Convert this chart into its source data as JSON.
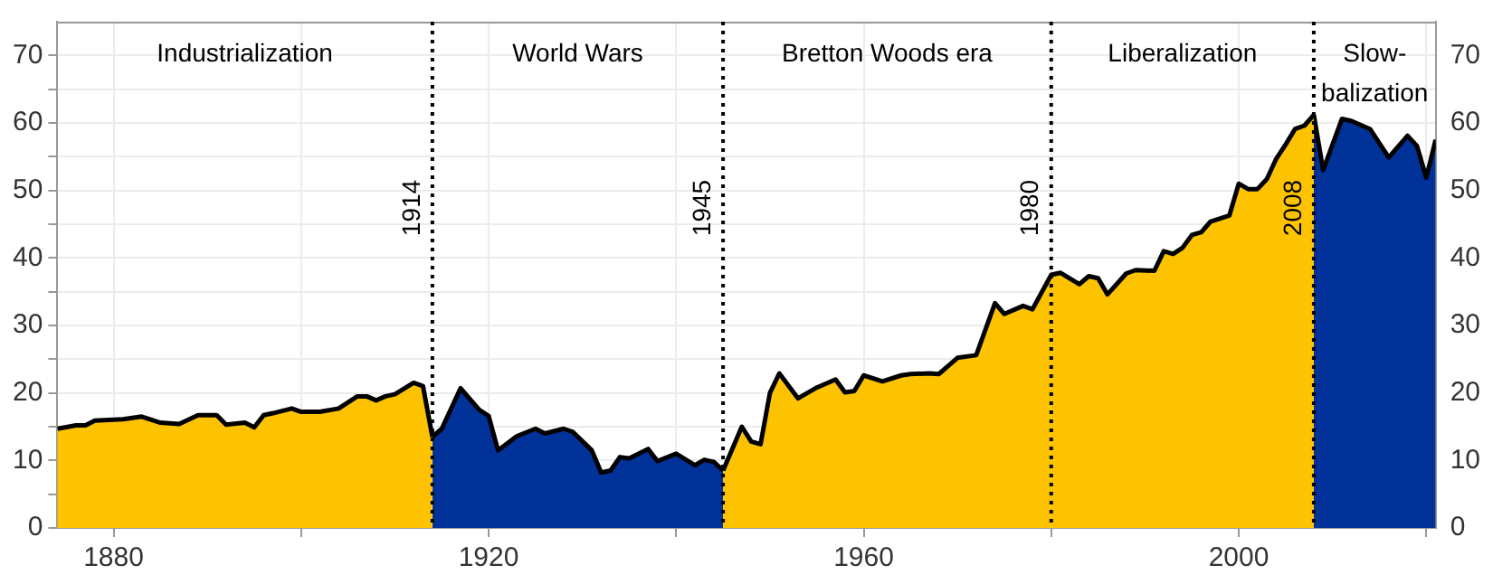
{
  "chart_data": {
    "type": "area",
    "xlim": [
      1874,
      2021
    ],
    "xticks": [
      1880,
      {
        "value": 1900,
        "label": null
      },
      1920,
      {
        "value": 1940,
        "label": null
      },
      1960,
      {
        "value": 1980,
        "label": null
      },
      2000,
      {
        "value": 2020,
        "label": null
      }
    ],
    "ylim": [
      0,
      75
    ],
    "yticks": [
      0,
      {
        "value": 5,
        "label": null
      },
      10,
      {
        "value": 15,
        "label": null
      },
      20,
      {
        "value": 25,
        "label": null
      },
      30,
      {
        "value": 35,
        "label": null
      },
      40,
      {
        "value": 45,
        "label": null
      },
      50,
      {
        "value": 55,
        "label": null
      },
      60,
      {
        "value": 65,
        "label": null
      },
      70
    ],
    "y2lim": [
      0,
      75
    ],
    "y2ticks": [
      0,
      10,
      20,
      30,
      40,
      50,
      60,
      70
    ],
    "grid": true,
    "series": [
      {
        "color": "#fdc300",
        "x": [
          1874,
          1876,
          1877,
          1878,
          1881,
          1883,
          1885,
          1887,
          1889,
          1891,
          1892,
          1894,
          1895,
          1896,
          1897,
          1899,
          1900,
          1902,
          1904,
          1906,
          1907,
          1908,
          1909,
          1910,
          1912,
          1913,
          1914
        ],
        "values": [
          14.7,
          15.2,
          15.2,
          15.9,
          16.1,
          16.5,
          15.6,
          15.4,
          16.7,
          16.7,
          15.3,
          15.6,
          14.9,
          16.7,
          17.0,
          17.7,
          17.2,
          17.2,
          17.7,
          19.5,
          19.5,
          18.9,
          19.5,
          19.8,
          21.5,
          21.0,
          13.5
        ]
      },
      {
        "color": "#003299",
        "x": [
          1914,
          1915,
          1917,
          1919,
          1920,
          1921,
          1923,
          1925,
          1926,
          1928,
          1929,
          1931,
          1932,
          1933,
          1934,
          1935,
          1937,
          1938,
          1940,
          1942,
          1943,
          1944,
          1945
        ],
        "values": [
          13.5,
          14.7,
          20.7,
          17.5,
          16.6,
          11.5,
          13.6,
          14.7,
          14.0,
          14.7,
          14.2,
          11.5,
          8.2,
          8.5,
          10.5,
          10.3,
          11.7,
          9.9,
          11.0,
          9.3,
          10.1,
          9.8,
          8.5
        ]
      },
      {
        "color": "#fdc300",
        "x": [
          1945,
          1947,
          1948,
          1949,
          1950,
          1951,
          1953,
          1955,
          1957,
          1958,
          1959,
          1960,
          1962,
          1964,
          1965,
          1967,
          1968,
          1969,
          1970,
          1972,
          1974,
          1975,
          1977,
          1978,
          1980,
          1981,
          1983,
          1984,
          1985,
          1986,
          1988,
          1989,
          1991,
          1992,
          1993,
          1994,
          1995,
          1996,
          1997,
          1999,
          2000,
          2001,
          2002,
          2003,
          2004,
          2005,
          2006,
          2007,
          2008
        ],
        "values": [
          8.5,
          15.0,
          12.8,
          12.4,
          20.0,
          22.9,
          19.2,
          20.8,
          22.0,
          20.1,
          20.3,
          22.6,
          21.7,
          22.6,
          22.8,
          22.9,
          22.8,
          24.0,
          25.2,
          25.6,
          33.3,
          31.7,
          32.9,
          32.4,
          37.5,
          37.8,
          36.1,
          37.3,
          37.0,
          34.6,
          37.7,
          38.2,
          38.1,
          41.0,
          40.6,
          41.5,
          43.4,
          43.8,
          45.4,
          46.3,
          51.0,
          50.2,
          50.2,
          51.7,
          54.7,
          56.8,
          59.1,
          59.6,
          61.2
        ]
      },
      {
        "color": "#003299",
        "x": [
          2008,
          2009,
          2010,
          2011,
          2012,
          2014,
          2016,
          2018,
          2019,
          2020,
          2021
        ],
        "values": [
          61.2,
          53.0,
          56.8,
          60.6,
          60.3,
          59.1,
          54.9,
          58.1,
          56.6,
          51.9,
          57.5
        ]
      }
    ],
    "ref_lines": [
      {
        "axis": "x",
        "value": 1914,
        "label": "1914",
        "color": "#000000",
        "line_style": "dotted"
      },
      {
        "axis": "x",
        "value": 1945,
        "label": "1945",
        "color": "#000000",
        "line_style": "dotted"
      },
      {
        "axis": "x",
        "value": 1980,
        "label": "1980",
        "color": "#000000",
        "line_style": "dotted"
      },
      {
        "axis": "x",
        "value": 2008,
        "label": "2008",
        "color": "#000000",
        "line_style": "dotted"
      }
    ],
    "annotations": [
      "Industrialization",
      "World Wars",
      "Bretton Woods era",
      "Liberalization",
      "Slow-\nbalization"
    ]
  }
}
